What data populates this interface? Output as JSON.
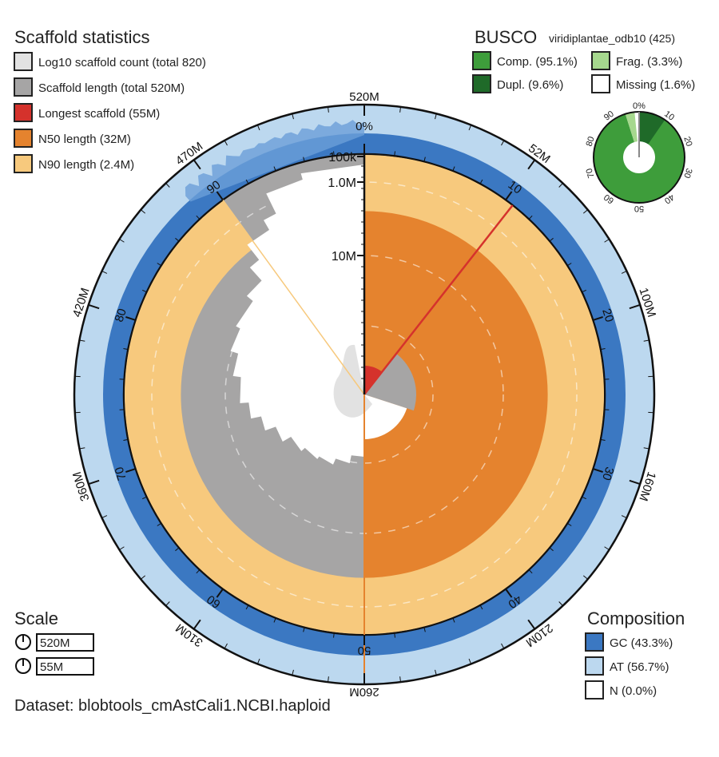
{
  "colors": {
    "at": "#bcd8ef",
    "gc": "#3b78c2",
    "gc_var": "#6b9fd8",
    "scaffold_count": "#e2e2e2",
    "scaffold_length": "#a6a5a5",
    "longest": "#d5322c",
    "n50": "#e5832e",
    "n90": "#f7c97d",
    "busco_comp": "#3e9d3b",
    "busco_dupl": "#1f6a29",
    "busco_frag": "#a6d88e",
    "busco_missing": "#ffffff"
  },
  "chart_data": {
    "type": "snail",
    "scaffold_statistics": {
      "title": "Scaffold statistics",
      "legend": [
        {
          "key": "scaffold_count",
          "label": "Log10 scaffold count (total 820)"
        },
        {
          "key": "scaffold_length",
          "label": "Scaffold length (total 520M)"
        },
        {
          "key": "longest",
          "label": "Longest scaffold (55M)"
        },
        {
          "key": "n50",
          "label": "N50 length (32M)"
        },
        {
          "key": "n90",
          "label": "N90 length (2.4M)"
        }
      ],
      "total_length_mb": 520,
      "longest_mb": 55,
      "n50_mb": 32,
      "n90_mb": 2.4,
      "scaffold_count": 820
    },
    "outer_axis_labels": [
      "520M",
      "52M",
      "100M",
      "160M",
      "210M",
      "260M",
      "310M",
      "360M",
      "420M",
      "470M"
    ],
    "percent_axis_labels": [
      "0%",
      "10",
      "20",
      "30",
      "40",
      "50",
      "60",
      "70",
      "80",
      "90"
    ],
    "radial_axis_labels": [
      "100k",
      "1.0M",
      "10M"
    ],
    "busco": {
      "title": "BUSCO",
      "lineage": "viridiplantae_odb10 (425)",
      "legend": [
        {
          "key": "busco_comp",
          "label": "Comp. (95.1%)",
          "value": 95.1
        },
        {
          "key": "busco_frag",
          "label": "Frag. (3.3%)",
          "value": 3.3
        },
        {
          "key": "busco_dupl",
          "label": "Dupl. (9.6%)",
          "value": 9.6
        },
        {
          "key": "busco_missing",
          "label": "Missing (1.6%)",
          "value": 1.6
        }
      ],
      "tick_labels": [
        "0%",
        "10",
        "20",
        "30",
        "40",
        "50",
        "60",
        "70",
        "80",
        "90"
      ]
    },
    "composition": {
      "title": "Composition",
      "legend": [
        {
          "key": "gc",
          "label": "GC (43.3%)",
          "value": 43.3
        },
        {
          "key": "at",
          "label": "AT (56.7%)",
          "value": 56.7
        },
        {
          "key": "n",
          "label": "N (0.0%)",
          "value": 0.0
        }
      ]
    },
    "scale": {
      "title": "Scale",
      "items": [
        "520M",
        "55M"
      ]
    },
    "dataset": "Dataset: blobtools_cmAstCali1.NCBI.haploid"
  }
}
